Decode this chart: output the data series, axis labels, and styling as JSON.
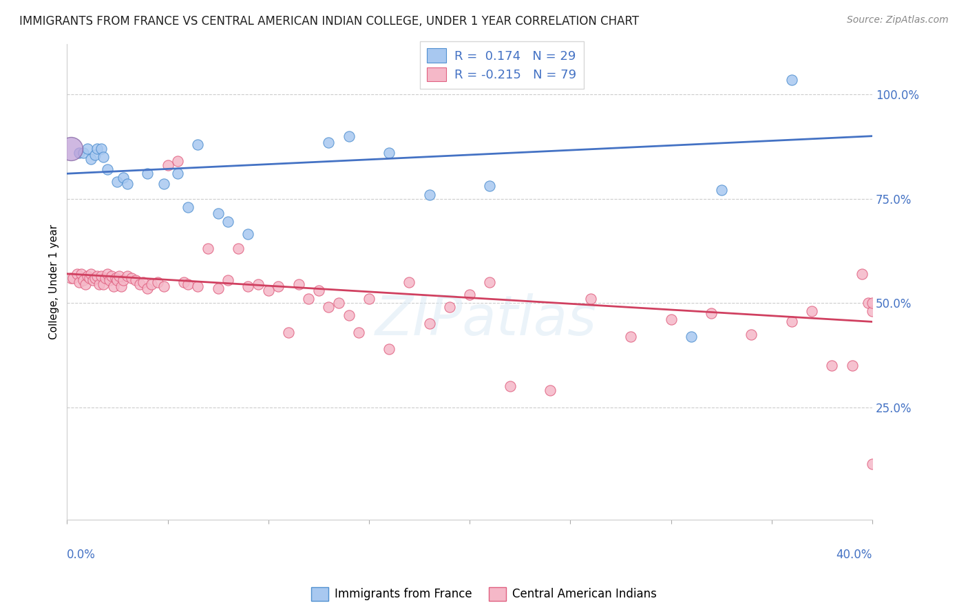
{
  "title": "IMMIGRANTS FROM FRANCE VS CENTRAL AMERICAN INDIAN COLLEGE, UNDER 1 YEAR CORRELATION CHART",
  "source": "Source: ZipAtlas.com",
  "ylabel": "College, Under 1 year",
  "xlim": [
    0.0,
    0.4
  ],
  "ylim": [
    -0.02,
    1.12
  ],
  "right_yticks": [
    0.25,
    0.5,
    0.75,
    1.0
  ],
  "right_yticklabels": [
    "25.0%",
    "50.0%",
    "75.0%",
    "100.0%"
  ],
  "blue_color": "#A8C8F0",
  "pink_color": "#F5B8C8",
  "blue_edge_color": "#5090D0",
  "pink_edge_color": "#E06080",
  "blue_line_color": "#4472C4",
  "pink_line_color": "#D04060",
  "legend_R1": "0.174",
  "legend_N1": "29",
  "legend_R2": "-0.215",
  "legend_N2": "79",
  "dot_size": 120,
  "large_dot_size": 600,
  "blue_line_x": [
    0.0,
    0.4
  ],
  "blue_line_y": [
    0.81,
    0.9
  ],
  "pink_line_x": [
    0.0,
    0.4
  ],
  "pink_line_y": [
    0.57,
    0.455
  ],
  "blue_scatter_x": [
    0.002,
    0.006,
    0.008,
    0.01,
    0.012,
    0.014,
    0.015,
    0.017,
    0.018,
    0.02,
    0.025,
    0.028,
    0.03,
    0.04,
    0.048,
    0.055,
    0.06,
    0.065,
    0.075,
    0.08,
    0.09,
    0.13,
    0.14,
    0.16,
    0.18,
    0.21,
    0.31,
    0.325,
    0.36
  ],
  "blue_scatter_y": [
    0.87,
    0.86,
    0.86,
    0.87,
    0.845,
    0.855,
    0.87,
    0.87,
    0.85,
    0.82,
    0.79,
    0.8,
    0.785,
    0.81,
    0.785,
    0.81,
    0.73,
    0.88,
    0.715,
    0.695,
    0.665,
    0.885,
    0.9,
    0.86,
    0.76,
    0.78,
    0.42,
    0.77,
    1.035
  ],
  "pink_scatter_x": [
    0.002,
    0.003,
    0.005,
    0.006,
    0.007,
    0.008,
    0.009,
    0.01,
    0.011,
    0.012,
    0.013,
    0.014,
    0.015,
    0.016,
    0.017,
    0.018,
    0.019,
    0.02,
    0.021,
    0.022,
    0.023,
    0.024,
    0.025,
    0.026,
    0.027,
    0.028,
    0.03,
    0.032,
    0.034,
    0.036,
    0.038,
    0.04,
    0.042,
    0.045,
    0.048,
    0.05,
    0.055,
    0.058,
    0.06,
    0.065,
    0.07,
    0.075,
    0.08,
    0.085,
    0.09,
    0.095,
    0.1,
    0.105,
    0.11,
    0.115,
    0.12,
    0.125,
    0.13,
    0.135,
    0.14,
    0.145,
    0.15,
    0.16,
    0.17,
    0.18,
    0.19,
    0.2,
    0.21,
    0.22,
    0.24,
    0.26,
    0.28,
    0.3,
    0.32,
    0.34,
    0.36,
    0.37,
    0.38,
    0.39,
    0.395,
    0.398,
    0.4,
    0.4,
    0.4
  ],
  "pink_scatter_y": [
    0.56,
    0.56,
    0.57,
    0.55,
    0.57,
    0.555,
    0.545,
    0.565,
    0.56,
    0.57,
    0.555,
    0.56,
    0.565,
    0.545,
    0.565,
    0.545,
    0.56,
    0.57,
    0.555,
    0.565,
    0.54,
    0.56,
    0.555,
    0.565,
    0.54,
    0.555,
    0.565,
    0.56,
    0.555,
    0.545,
    0.55,
    0.535,
    0.545,
    0.55,
    0.54,
    0.83,
    0.84,
    0.55,
    0.545,
    0.54,
    0.63,
    0.535,
    0.555,
    0.63,
    0.54,
    0.545,
    0.53,
    0.54,
    0.43,
    0.545,
    0.51,
    0.53,
    0.49,
    0.5,
    0.47,
    0.43,
    0.51,
    0.39,
    0.55,
    0.45,
    0.49,
    0.52,
    0.55,
    0.3,
    0.29,
    0.51,
    0.42,
    0.46,
    0.475,
    0.425,
    0.455,
    0.48,
    0.35,
    0.35,
    0.57,
    0.5,
    0.48,
    0.5,
    0.115
  ],
  "watermark_text": "ZIPatlas",
  "title_fontsize": 12,
  "source_fontsize": 10,
  "ylabel_fontsize": 11,
  "legend_fontsize": 13,
  "tick_label_fontsize": 12
}
